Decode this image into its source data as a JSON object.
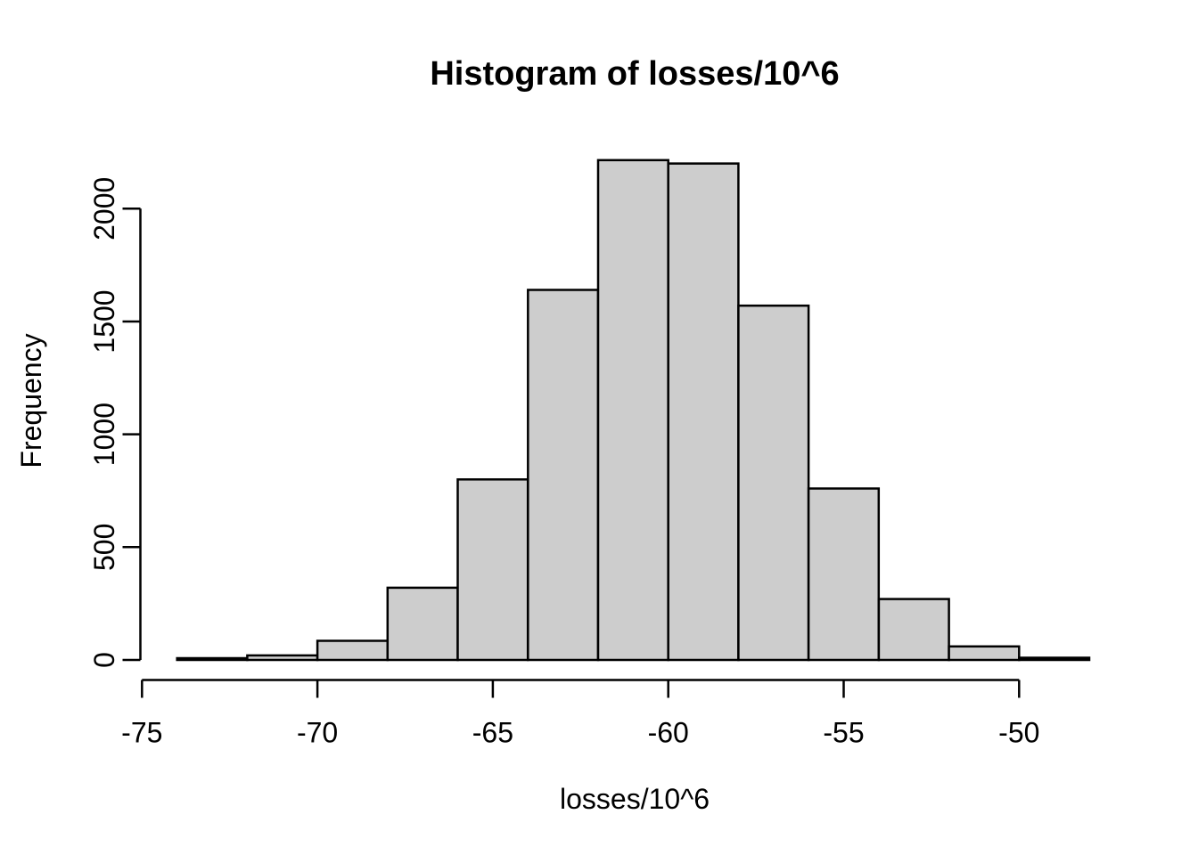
{
  "chart_data": {
    "type": "bar",
    "variant": "histogram",
    "title": "Histogram of losses/10^6",
    "xlabel": "losses/10^6",
    "ylabel": "Frequency",
    "bin_edges": [
      -74,
      -72,
      -70,
      -68,
      -66,
      -64,
      -62,
      -60,
      -58,
      -56,
      -54,
      -52,
      -50,
      -48
    ],
    "counts": [
      8,
      20,
      85,
      320,
      800,
      1640,
      2215,
      2200,
      1570,
      760,
      270,
      60,
      10
    ],
    "x_ticks": [
      -75,
      -70,
      -65,
      -60,
      -55,
      -50
    ],
    "y_ticks": [
      0,
      500,
      1000,
      1500,
      2000
    ],
    "xlim": [
      -75,
      -50
    ],
    "ylim": [
      0,
      2000
    ],
    "grid": false,
    "legend": null,
    "colors": {
      "bar_fill": "#cdcdcd",
      "bar_stroke": "#000000",
      "axis": "#000000",
      "background": "#ffffff",
      "text": "#000000"
    }
  }
}
